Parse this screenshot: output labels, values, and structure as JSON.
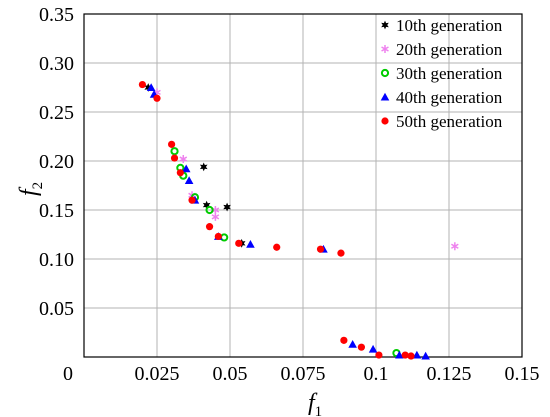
{
  "chart_data": {
    "type": "scatter",
    "title": "",
    "xlabel": "f",
    "xlabel_sub": "1",
    "ylabel": "f",
    "ylabel_sub": "2",
    "xlim": [
      0,
      0.15
    ],
    "ylim": [
      0,
      0.35
    ],
    "x_ticks": [
      0.025,
      0.05,
      0.075,
      0.1,
      0.125,
      0.15
    ],
    "x_tick_labels": [
      "0.025",
      "0.05",
      "0.075",
      "0.1",
      "0.125",
      "0.15"
    ],
    "y_ticks": [
      0.05,
      0.1,
      0.15,
      0.2,
      0.25,
      0.3,
      0.35
    ],
    "y_tick_labels": [
      "0.05",
      "0.10",
      "0.15",
      "0.20",
      "0.25",
      "0.30",
      "0.35"
    ],
    "origin_label": "0",
    "grid": true,
    "legend_position": "top-right",
    "series": [
      {
        "name": "10th generation",
        "marker": "star",
        "color": "#000000",
        "points": [
          [
            0.022,
            0.275
          ],
          [
            0.041,
            0.194
          ],
          [
            0.042,
            0.155
          ],
          [
            0.049,
            0.153
          ],
          [
            0.054,
            0.116
          ]
        ]
      },
      {
        "name": "20th generation",
        "marker": "asterisk",
        "color": "#ee82ee",
        "points": [
          [
            0.025,
            0.27
          ],
          [
            0.034,
            0.202
          ],
          [
            0.037,
            0.165
          ],
          [
            0.045,
            0.15
          ],
          [
            0.045,
            0.143
          ],
          [
            0.127,
            0.113
          ]
        ]
      },
      {
        "name": "30th generation",
        "marker": "circle-open",
        "color": "#00cc00",
        "points": [
          [
            0.031,
            0.21
          ],
          [
            0.033,
            0.193
          ],
          [
            0.034,
            0.185
          ],
          [
            0.038,
            0.163
          ],
          [
            0.043,
            0.15
          ],
          [
            0.048,
            0.122
          ],
          [
            0.107,
            0.004
          ]
        ]
      },
      {
        "name": "40th generation",
        "marker": "triangle",
        "color": "#0000ff",
        "points": [
          [
            0.023,
            0.275
          ],
          [
            0.024,
            0.268
          ],
          [
            0.035,
            0.192
          ],
          [
            0.036,
            0.18
          ],
          [
            0.038,
            0.16
          ],
          [
            0.046,
            0.123
          ],
          [
            0.057,
            0.115
          ],
          [
            0.082,
            0.11
          ],
          [
            0.092,
            0.013
          ],
          [
            0.099,
            0.008
          ],
          [
            0.108,
            0.002
          ],
          [
            0.114,
            0.002
          ],
          [
            0.117,
            0.001
          ]
        ]
      },
      {
        "name": "50th generation",
        "marker": "circle",
        "color": "#ff0000",
        "points": [
          [
            0.02,
            0.278
          ],
          [
            0.025,
            0.264
          ],
          [
            0.03,
            0.217
          ],
          [
            0.031,
            0.203
          ],
          [
            0.033,
            0.188
          ],
          [
            0.037,
            0.16
          ],
          [
            0.043,
            0.133
          ],
          [
            0.046,
            0.123
          ],
          [
            0.053,
            0.116
          ],
          [
            0.066,
            0.112
          ],
          [
            0.081,
            0.11
          ],
          [
            0.088,
            0.106
          ],
          [
            0.089,
            0.017
          ],
          [
            0.095,
            0.01
          ],
          [
            0.101,
            0.002
          ],
          [
            0.11,
            0.002
          ],
          [
            0.112,
            0.001
          ]
        ]
      }
    ]
  }
}
